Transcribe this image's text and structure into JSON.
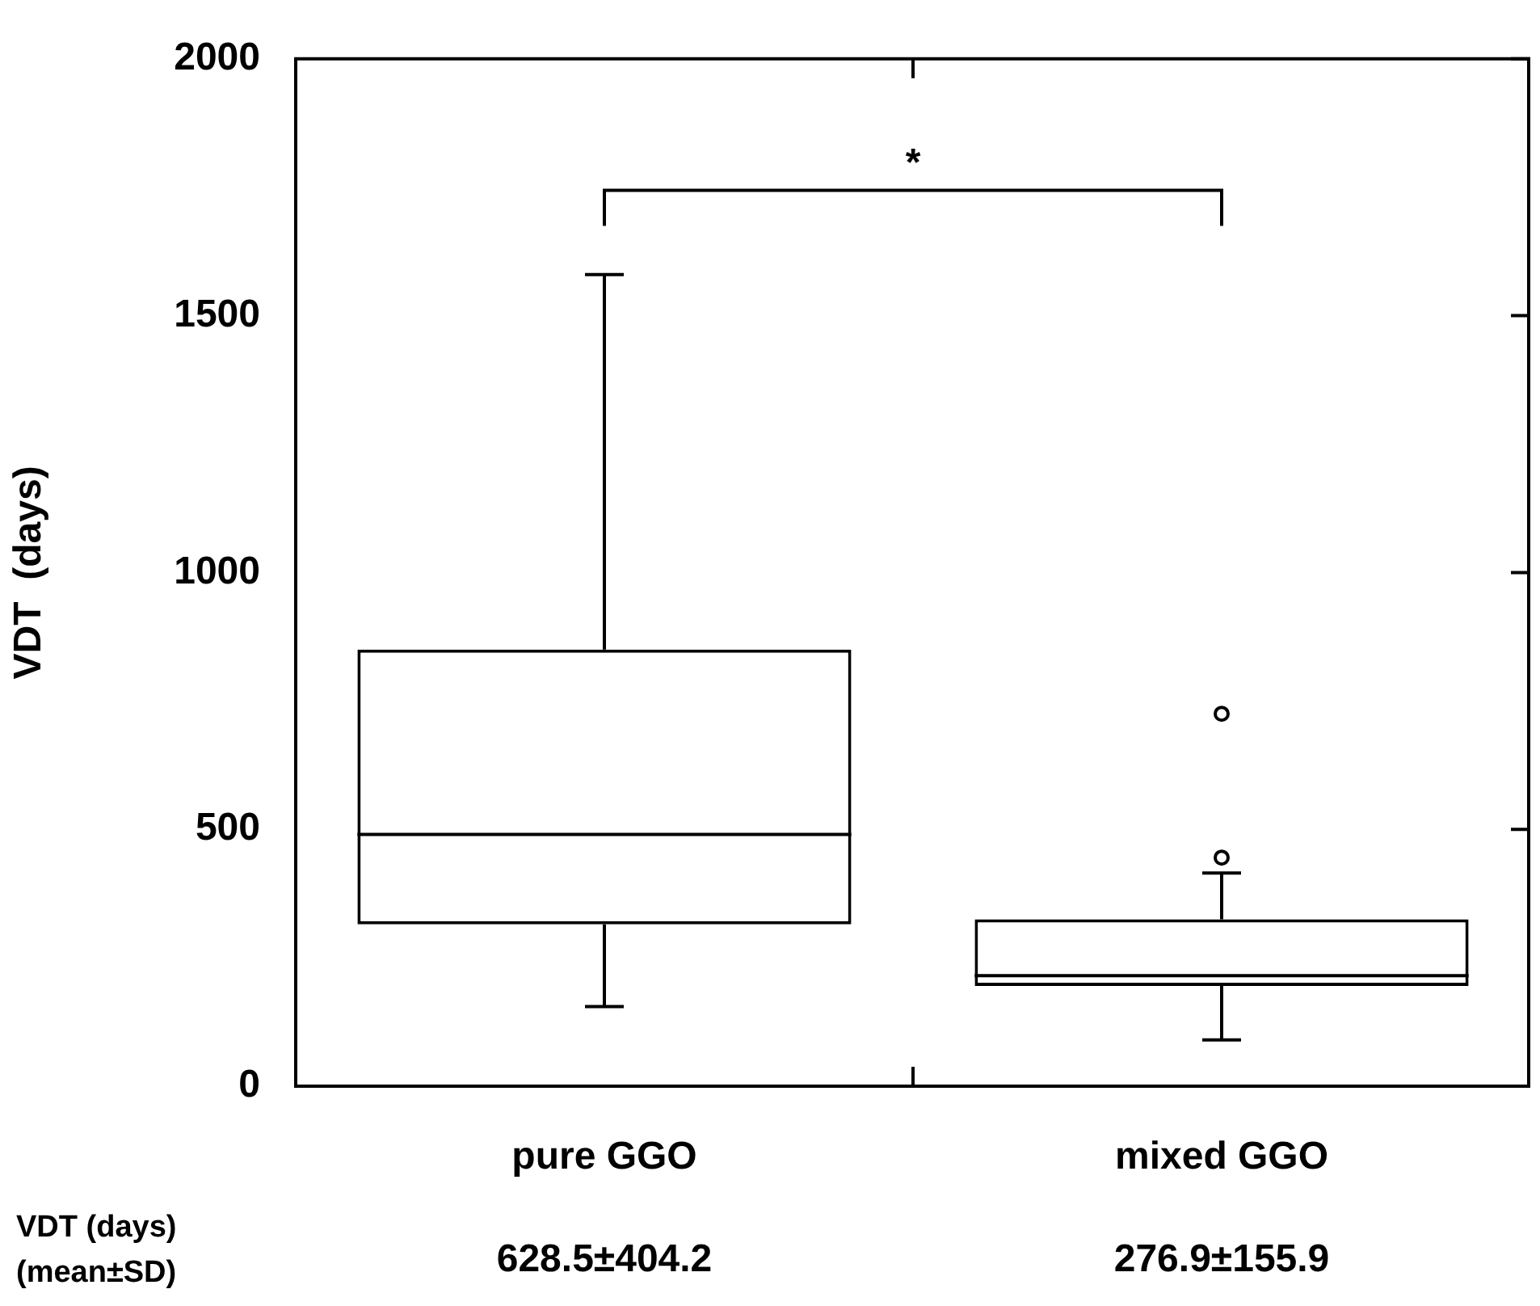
{
  "chart_data": {
    "type": "box",
    "ylabel": "VDT  (days)",
    "categories": [
      "pure GGO",
      "mixed GGO"
    ],
    "boxes": [
      {
        "low": 155,
        "q1": 315,
        "median": 490,
        "q3": 850,
        "high": 1580
      },
      {
        "low": 90,
        "q1": 195,
        "median": 215,
        "q3": 325,
        "high": 415,
        "outliers": [
          445,
          725
        ]
      }
    ],
    "color": "#000000",
    "ylim": [
      0,
      2000
    ],
    "yticks": [
      0,
      500,
      1000,
      1500,
      2000
    ],
    "grid": false,
    "legend": false,
    "marker": "circle",
    "annotations": [
      "*",
      "VDT (days)\n(mean±SD)",
      "628.5±404.2",
      "276.9±155.9"
    ]
  }
}
